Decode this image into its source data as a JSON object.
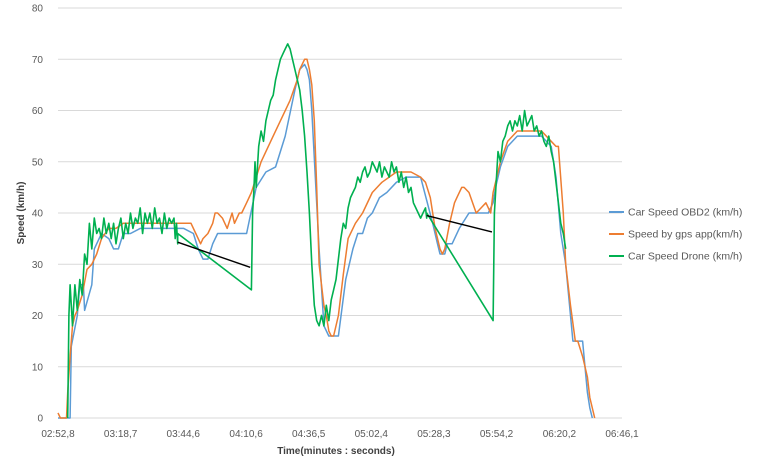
{
  "chart_data": {
    "type": "line",
    "title": "",
    "xlabel": "Time(minutes : seconds)",
    "ylabel": "Speed (km/h)",
    "ylim": [
      0,
      80
    ],
    "yticks": [
      "0",
      "10",
      "20",
      "30",
      "40",
      "50",
      "60",
      "70",
      "80"
    ],
    "xlim": [
      0,
      233.3
    ],
    "xticks": [
      {
        "t": 0,
        "label": "02:52,8"
      },
      {
        "t": 25.9,
        "label": "03:18,7"
      },
      {
        "t": 51.8,
        "label": "03:44,6"
      },
      {
        "t": 77.8,
        "label": "04:10,6"
      },
      {
        "t": 103.7,
        "label": "04:36,5"
      },
      {
        "t": 129.6,
        "label": "05:02,4"
      },
      {
        "t": 155.5,
        "label": "05:28,3"
      },
      {
        "t": 181.4,
        "label": "05:54,2"
      },
      {
        "t": 207.4,
        "label": "06:20,2"
      },
      {
        "t": 233.3,
        "label": "06:46,1"
      }
    ],
    "grid": "horizontal",
    "legend_position": "right",
    "series": [
      {
        "name": "Car Speed OBD2 (km/h)",
        "color": "#5b9bd5",
        "x": [
          0,
          5,
          5.5,
          8,
          9,
          10.5,
          11,
          14,
          15,
          18,
          21,
          23,
          25,
          27,
          30,
          34,
          40,
          48,
          52,
          56,
          58,
          60,
          62,
          64,
          66,
          70,
          75,
          78,
          82,
          86,
          90,
          94,
          98,
          100,
          102,
          103,
          104,
          105,
          108,
          110,
          112,
          113,
          116,
          119,
          122,
          124,
          126,
          128,
          130,
          133,
          136,
          140,
          144,
          150,
          155,
          157,
          158,
          160,
          161,
          163,
          166,
          170,
          174,
          178,
          180,
          181,
          183,
          186,
          190,
          195,
          200,
          204,
          206,
          208,
          210,
          211,
          213,
          215,
          217,
          218,
          219,
          220,
          221
        ],
        "y": [
          0,
          0,
          14,
          20,
          26,
          26,
          21,
          26,
          33,
          36,
          35,
          33,
          33,
          36,
          36,
          37,
          37,
          37,
          37,
          36,
          33,
          31,
          31,
          34,
          36,
          36,
          36,
          36,
          45,
          48,
          49,
          55,
          64,
          68,
          69,
          68,
          66,
          60,
          33,
          18,
          16,
          16,
          16,
          27,
          33,
          36,
          36,
          39,
          40,
          43,
          44,
          46,
          47,
          47,
          38,
          34,
          32,
          32,
          34,
          34,
          37,
          40,
          40,
          40,
          42,
          45,
          49,
          53,
          55,
          55,
          55,
          53,
          47,
          36,
          30,
          25,
          15,
          15,
          15,
          10,
          5,
          2,
          0
        ]
      },
      {
        "name": "Speed by gps app(km/h)",
        "color": "#ed7d31",
        "x": [
          0,
          1,
          2,
          3.5,
          4,
          5,
          6,
          7,
          8,
          10,
          12,
          14,
          16,
          18,
          21,
          24,
          27,
          30,
          34,
          40,
          48,
          52,
          55,
          57,
          59,
          60,
          62,
          64,
          65,
          66,
          68,
          70,
          72,
          73,
          75,
          76,
          78,
          80,
          84,
          88,
          92,
          96,
          99,
          100,
          102,
          103,
          104,
          105,
          106,
          107,
          108,
          110,
          111,
          112,
          113,
          114,
          115,
          116,
          118,
          120,
          123,
          126,
          130,
          134,
          140,
          146,
          150,
          152,
          154,
          155,
          156,
          158,
          159,
          160,
          162,
          164,
          165,
          167,
          168,
          170,
          173,
          175,
          177,
          179,
          180,
          183,
          186,
          190,
          195,
          200,
          204,
          206,
          207,
          209,
          210,
          212,
          214,
          215,
          217,
          219,
          220,
          222
        ],
        "y": [
          1,
          0,
          0,
          0,
          5,
          12,
          18,
          20,
          21,
          24,
          29,
          30,
          32,
          35,
          37,
          37,
          38,
          38,
          38,
          38,
          38,
          38,
          38,
          36,
          34,
          35,
          36,
          38,
          40,
          40,
          39,
          37,
          40,
          38,
          40,
          40,
          42,
          44,
          50,
          54,
          58,
          62,
          66,
          68,
          70,
          70,
          68,
          65,
          58,
          45,
          30,
          22,
          20,
          17,
          16,
          16,
          18,
          20,
          28,
          35,
          38,
          40,
          44,
          46,
          48,
          48,
          47,
          46,
          43,
          40,
          37,
          33,
          32,
          33,
          38,
          42,
          43,
          45,
          45,
          44,
          40,
          41,
          42,
          40,
          44,
          50,
          54,
          56,
          56,
          56,
          54,
          53,
          53,
          40,
          30,
          22,
          15,
          15,
          12,
          8,
          4,
          0
        ]
      },
      {
        "name": "Car Speed Drone (km/h)",
        "color": "#00b050",
        "x": [
          4,
          4.5,
          5,
          6,
          7,
          8,
          9,
          10,
          11,
          12,
          13,
          14,
          15,
          16,
          17,
          18,
          19,
          20,
          21,
          22,
          23,
          24,
          25,
          26,
          27,
          28,
          29,
          30,
          31,
          32,
          33,
          34,
          35,
          36,
          37,
          38,
          39,
          40,
          41,
          42,
          43,
          44,
          45,
          46,
          47,
          48,
          48.5,
          49,
          49.5,
          49.5,
          80,
          80.5,
          81,
          81.5,
          82,
          83,
          84,
          85,
          86,
          87,
          88,
          89,
          90,
          91,
          92,
          93,
          94,
          95,
          96,
          97,
          98,
          99,
          100,
          101,
          102,
          103,
          104,
          105,
          106,
          107,
          108,
          109,
          110,
          111,
          112,
          113,
          114,
          115,
          116,
          117,
          118,
          119,
          120,
          121,
          122,
          123,
          124,
          125,
          126,
          127,
          128,
          129,
          130,
          131,
          132,
          133,
          134,
          135,
          136,
          137,
          138,
          139,
          140,
          141,
          142,
          143,
          144,
          145,
          146,
          147,
          148,
          149,
          150,
          151,
          152,
          152.5,
          152.5,
          180,
          180.5,
          181,
          181.5,
          182,
          183,
          184,
          185,
          186,
          187,
          188,
          189,
          190,
          191,
          192,
          193,
          194,
          195,
          196,
          197,
          198,
          199,
          200,
          201,
          202,
          203,
          204,
          205,
          206,
          207,
          208,
          209,
          210
        ],
        "y": [
          0,
          20,
          26,
          18,
          26,
          21,
          27,
          24,
          32,
          30,
          38,
          33,
          39,
          36,
          37,
          35,
          39,
          36,
          38,
          35,
          38,
          34,
          37,
          39,
          35,
          38,
          36,
          40,
          37,
          39,
          38,
          41,
          36,
          40,
          38,
          40,
          37,
          41,
          38,
          39,
          36,
          40,
          37,
          39,
          38,
          39,
          35,
          38,
          34,
          36,
          25,
          40,
          44,
          50,
          45,
          53,
          56,
          54,
          58,
          60,
          62,
          63,
          66,
          68,
          70,
          71,
          72,
          73,
          72,
          70,
          68,
          66,
          64,
          60,
          55,
          48,
          40,
          30,
          22,
          19,
          18,
          20,
          18,
          22,
          19,
          23,
          25,
          27,
          31,
          35,
          38,
          37,
          41,
          43,
          44,
          45,
          47,
          46,
          48,
          49,
          47,
          48,
          50,
          49,
          48,
          50,
          47,
          49,
          48,
          47,
          50,
          48,
          49,
          46,
          48,
          45,
          47,
          44,
          45,
          42,
          41,
          40,
          39,
          40,
          41,
          39,
          40,
          19,
          40,
          44,
          48,
          52,
          50,
          54,
          55,
          57,
          58,
          56,
          58,
          57,
          59,
          56,
          60,
          57,
          58,
          59,
          56,
          57,
          55,
          56,
          54,
          53,
          55,
          52,
          50,
          46,
          42,
          38,
          36,
          33
        ]
      }
    ],
    "annotations": [
      {
        "type": "line",
        "color": "#000000",
        "x": [
          49.5,
          79.5
        ],
        "y": [
          34.3,
          29.4
        ]
      },
      {
        "type": "line",
        "color": "#000000",
        "x": [
          152.5,
          179.5
        ],
        "y": [
          39.5,
          36.3
        ]
      }
    ]
  }
}
